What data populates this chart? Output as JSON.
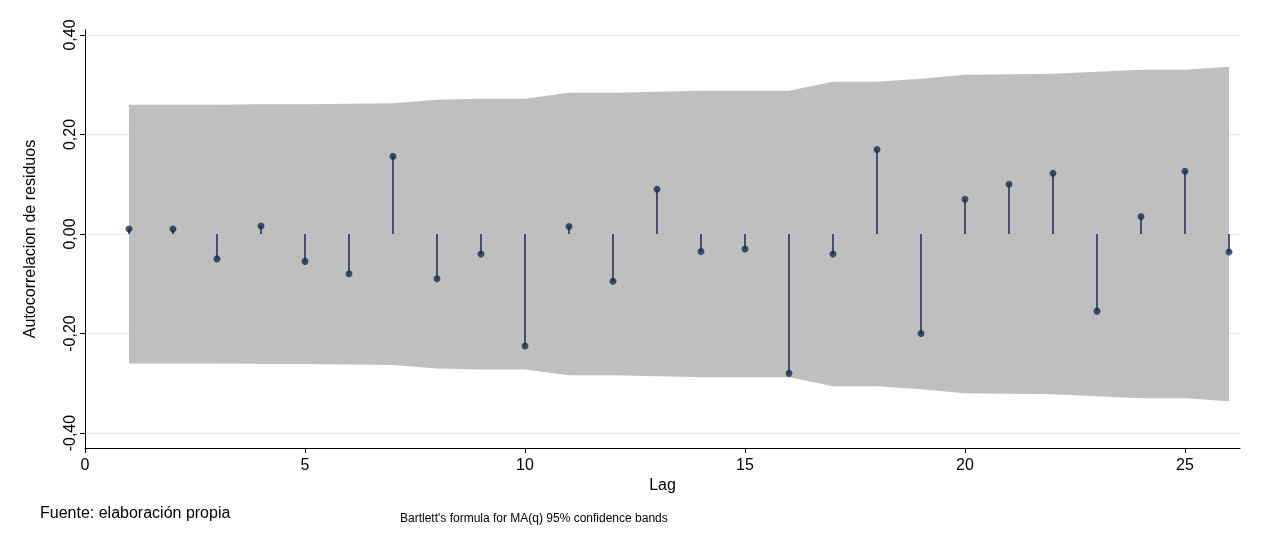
{
  "chart_data": {
    "type": "lollipop",
    "xlabel": "Lag",
    "ylabel": "Autocorrelacion de residuos",
    "annotations": [
      "Fuente: elaboración propia",
      "Bartlett's formula for MA(q) 95% confidence bands"
    ],
    "x": [
      1,
      2,
      3,
      4,
      5,
      6,
      7,
      8,
      9,
      10,
      11,
      12,
      13,
      14,
      15,
      16,
      17,
      18,
      19,
      20,
      21,
      22,
      23,
      24,
      25,
      26
    ],
    "series": [
      {
        "color": "#1b2a4e",
        "values": [
          0.01,
          0.01,
          -0.05,
          0.016,
          -0.055,
          -0.08,
          0.156,
          -0.09,
          -0.04,
          -0.225,
          0.015,
          -0.095,
          0.09,
          -0.035,
          -0.03,
          -0.28,
          -0.04,
          0.17,
          -0.2,
          0.07,
          0.1,
          0.122,
          -0.155,
          0.035,
          0.126,
          -0.036
        ],
        "lower": [
          -0.26,
          -0.26,
          -0.26,
          -0.261,
          -0.261,
          -0.262,
          -0.263,
          -0.27,
          -0.272,
          -0.272,
          -0.284,
          -0.284,
          -0.286,
          -0.288,
          -0.288,
          -0.288,
          -0.306,
          -0.306,
          -0.312,
          -0.32,
          -0.321,
          -0.322,
          -0.326,
          -0.33,
          -0.33,
          -0.336
        ],
        "upper": [
          0.26,
          0.26,
          0.26,
          0.261,
          0.261,
          0.262,
          0.263,
          0.27,
          0.272,
          0.272,
          0.284,
          0.284,
          0.286,
          0.288,
          0.288,
          0.288,
          0.306,
          0.306,
          0.312,
          0.32,
          0.321,
          0.322,
          0.326,
          0.33,
          0.33,
          0.336
        ]
      }
    ],
    "xlim": [
      0,
      26.25
    ],
    "xticks": [
      0,
      5,
      10,
      15,
      20,
      25
    ],
    "ylim": [
      -0.43,
      0.41
    ],
    "yticks": [
      {
        "value": -0.4,
        "label": "-0,40"
      },
      {
        "value": -0.2,
        "label": "-0,20"
      },
      {
        "value": 0,
        "label": "0,00"
      },
      {
        "value": 0.2,
        "label": "0,20"
      },
      {
        "value": 0.4,
        "label": "0,40"
      }
    ],
    "grid": "y",
    "marker": "circle"
  }
}
